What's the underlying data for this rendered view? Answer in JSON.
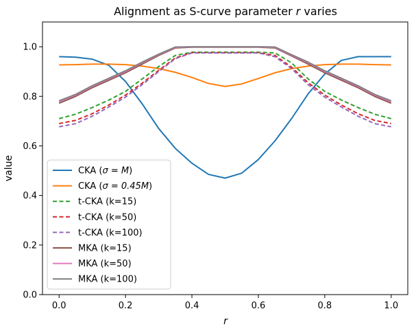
{
  "chart_data": {
    "type": "line",
    "title_prefix": "Alignment as S-curve parameter ",
    "title_var": "r",
    "title_suffix": " varies",
    "xlabel": "r",
    "ylabel": "value",
    "xlim": [
      -0.05,
      1.05
    ],
    "ylim": [
      0.0,
      1.1
    ],
    "xticks": [
      "0.0",
      "0.2",
      "0.4",
      "0.6",
      "0.8",
      "1.0"
    ],
    "xtick_values": [
      0.0,
      0.2,
      0.4,
      0.6,
      0.8,
      1.0
    ],
    "yticks": [
      "0.0",
      "0.2",
      "0.4",
      "0.6",
      "0.8",
      "1.0"
    ],
    "ytick_values": [
      0.0,
      0.2,
      0.4,
      0.6,
      0.8,
      1.0
    ],
    "grid": false,
    "legend_position": "lower-left",
    "x": [
      0.0,
      0.05,
      0.1,
      0.15,
      0.2,
      0.25,
      0.3,
      0.35,
      0.4,
      0.45,
      0.5,
      0.55,
      0.6,
      0.65,
      0.7,
      0.75,
      0.8,
      0.85,
      0.9,
      0.95,
      1.0
    ],
    "series": [
      {
        "name": "CKA (σ = M)",
        "color": "#1f77b4",
        "dash": "solid",
        "values": [
          0.96,
          0.958,
          0.95,
          0.925,
          0.86,
          0.77,
          0.67,
          0.59,
          0.53,
          0.485,
          0.47,
          0.49,
          0.545,
          0.62,
          0.71,
          0.81,
          0.89,
          0.945,
          0.96,
          0.96,
          0.96
        ]
      },
      {
        "name": "CKA (σ = 0.45M)",
        "color": "#ff7f0e",
        "dash": "solid",
        "values": [
          0.927,
          0.928,
          0.93,
          0.93,
          0.928,
          0.922,
          0.912,
          0.897,
          0.876,
          0.852,
          0.84,
          0.85,
          0.872,
          0.895,
          0.912,
          0.922,
          0.928,
          0.93,
          0.93,
          0.928,
          0.927
        ]
      },
      {
        "name": "t-CKA (k=15)",
        "color": "#2ca02c",
        "dash": "dashed",
        "values": [
          0.71,
          0.728,
          0.755,
          0.785,
          0.82,
          0.87,
          0.92,
          0.965,
          0.978,
          0.978,
          0.978,
          0.978,
          0.978,
          0.975,
          0.935,
          0.87,
          0.82,
          0.785,
          0.755,
          0.728,
          0.71
        ]
      },
      {
        "name": "t-CKA (k=50)",
        "color": "#d62728",
        "dash": "dashed",
        "values": [
          0.69,
          0.703,
          0.73,
          0.765,
          0.805,
          0.853,
          0.905,
          0.955,
          0.976,
          0.976,
          0.976,
          0.976,
          0.976,
          0.965,
          0.918,
          0.855,
          0.805,
          0.765,
          0.73,
          0.703,
          0.69
        ]
      },
      {
        "name": "t-CKA (k=100)",
        "color": "#9467bd",
        "dash": "dashed",
        "values": [
          0.677,
          0.69,
          0.72,
          0.757,
          0.797,
          0.847,
          0.9,
          0.952,
          0.975,
          0.975,
          0.975,
          0.975,
          0.975,
          0.96,
          0.912,
          0.847,
          0.797,
          0.757,
          0.72,
          0.69,
          0.677
        ]
      },
      {
        "name": "MKA (k=15)",
        "color": "#8c564b",
        "dash": "solid",
        "values": [
          0.772,
          0.8,
          0.835,
          0.865,
          0.895,
          0.93,
          0.965,
          0.995,
          0.998,
          0.998,
          0.998,
          0.998,
          0.998,
          0.995,
          0.963,
          0.93,
          0.895,
          0.865,
          0.835,
          0.8,
          0.772
        ]
      },
      {
        "name": "MKA (k=50)",
        "color": "#e377c2",
        "dash": "solid",
        "values": [
          0.778,
          0.805,
          0.84,
          0.87,
          0.9,
          0.935,
          0.968,
          0.997,
          0.999,
          0.999,
          0.999,
          0.999,
          0.999,
          0.997,
          0.966,
          0.935,
          0.9,
          0.87,
          0.84,
          0.805,
          0.778
        ]
      },
      {
        "name": "MKA (k=100)",
        "color": "#7f7f7f",
        "dash": "solid",
        "values": [
          0.782,
          0.808,
          0.843,
          0.873,
          0.903,
          0.938,
          0.97,
          0.999,
          1.0,
          1.0,
          1.0,
          1.0,
          1.0,
          0.999,
          0.968,
          0.938,
          0.903,
          0.873,
          0.843,
          0.808,
          0.782
        ]
      }
    ],
    "legend": [
      {
        "prefix": "CKA (",
        "math": "σ = M",
        "suffix": ")"
      },
      {
        "prefix": "CKA (",
        "math": "σ = 0.45M",
        "suffix": ")"
      },
      {
        "prefix": "t-CKA (k=15)",
        "math": "",
        "suffix": ""
      },
      {
        "prefix": "t-CKA (k=50)",
        "math": "",
        "suffix": ""
      },
      {
        "prefix": "t-CKA (k=100)",
        "math": "",
        "suffix": ""
      },
      {
        "prefix": "MKA (k=15)",
        "math": "",
        "suffix": ""
      },
      {
        "prefix": "MKA (k=50)",
        "math": "",
        "suffix": ""
      },
      {
        "prefix": "MKA (k=100)",
        "math": "",
        "suffix": ""
      }
    ]
  }
}
